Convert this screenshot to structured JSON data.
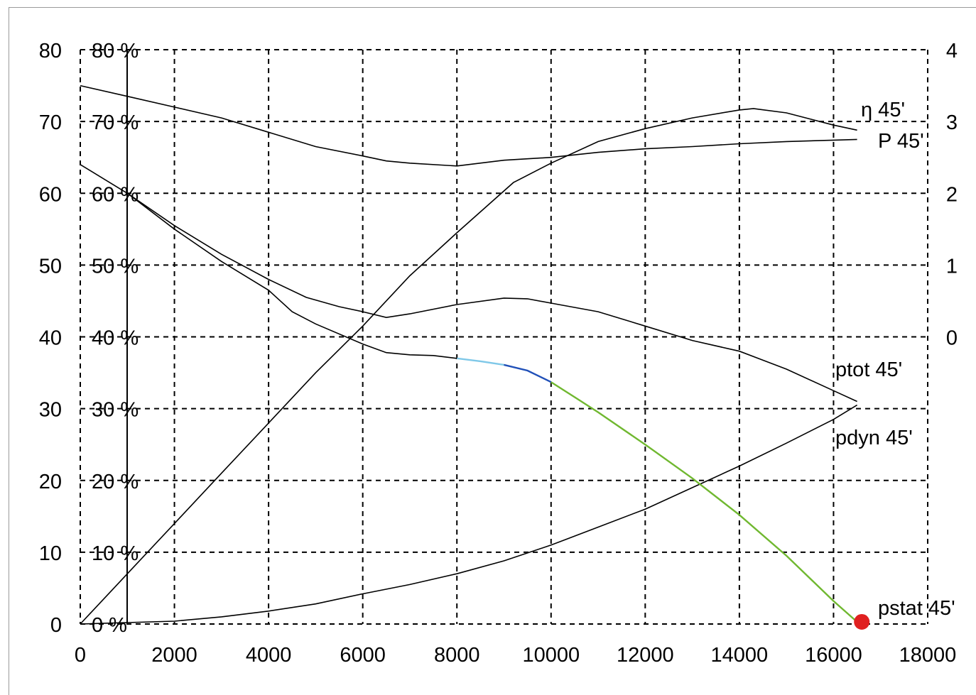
{
  "chart_data": {
    "type": "line",
    "title": "",
    "xlabel": "",
    "ylabel": "",
    "xlim": [
      0,
      18000
    ],
    "ylim": [
      0,
      80
    ],
    "y2lim": [
      -4,
      4
    ],
    "grid": true,
    "x_ticks": [
      "0",
      "2000",
      "4000",
      "6000",
      "8000",
      "10000",
      "12000",
      "14000",
      "16000",
      "18000"
    ],
    "y_ticks": [
      "0",
      "10",
      "20",
      "30",
      "40",
      "50",
      "60",
      "70",
      "80"
    ],
    "y_pct_ticks": [
      "0 %",
      "10 %",
      "20 %",
      "30 %",
      "40 %",
      "50 %",
      "60 %",
      "70 %",
      "80 %"
    ],
    "y2_ticks": [
      "0",
      "1",
      "2",
      "3",
      "4"
    ],
    "series": [
      {
        "name": "η 45'",
        "color": "#000000",
        "points": [
          [
            0,
            0
          ],
          [
            1000,
            7
          ],
          [
            2000,
            14
          ],
          [
            3000,
            21
          ],
          [
            4000,
            28
          ],
          [
            5000,
            35
          ],
          [
            6000,
            41.5
          ],
          [
            7000,
            48.5
          ],
          [
            8000,
            54.5
          ],
          [
            8600,
            58
          ],
          [
            9200,
            61.5
          ],
          [
            10000,
            64.2
          ],
          [
            11000,
            67.2
          ],
          [
            12000,
            69
          ],
          [
            13000,
            70.5
          ],
          [
            14000,
            71.6
          ],
          [
            14300,
            71.8
          ],
          [
            15000,
            71.2
          ],
          [
            16000,
            69.5
          ],
          [
            16500,
            68.8
          ]
        ]
      },
      {
        "name": "P 45'",
        "color": "#000000",
        "points": [
          [
            0,
            75
          ],
          [
            1000,
            73.5
          ],
          [
            2000,
            72
          ],
          [
            3000,
            70.5
          ],
          [
            4000,
            68.5
          ],
          [
            5000,
            66.5
          ],
          [
            6000,
            65.2
          ],
          [
            6500,
            64.5
          ],
          [
            7000,
            64.2
          ],
          [
            8000,
            63.8
          ],
          [
            9000,
            64.6
          ],
          [
            10000,
            65
          ],
          [
            11000,
            65.7
          ],
          [
            12000,
            66.2
          ],
          [
            13000,
            66.5
          ],
          [
            14000,
            66.9
          ],
          [
            15000,
            67.2
          ],
          [
            16000,
            67.4
          ],
          [
            16500,
            67.5
          ]
        ]
      },
      {
        "name": "ptot 45'",
        "color": "#000000",
        "points": [
          [
            0,
            64
          ],
          [
            1000,
            60
          ],
          [
            2000,
            55.5
          ],
          [
            3000,
            51.5
          ],
          [
            4000,
            48
          ],
          [
            4800,
            45.5
          ],
          [
            5500,
            44.2
          ],
          [
            6000,
            43.5
          ],
          [
            6500,
            42.7
          ],
          [
            7000,
            43.2
          ],
          [
            8000,
            44.5
          ],
          [
            9000,
            45.4
          ],
          [
            9500,
            45.3
          ],
          [
            10000,
            44.7
          ],
          [
            11000,
            43.5
          ],
          [
            12000,
            41.5
          ],
          [
            13000,
            39.5
          ],
          [
            14000,
            38
          ],
          [
            15000,
            35.5
          ],
          [
            16000,
            32.5
          ],
          [
            16500,
            31
          ]
        ]
      },
      {
        "name": "pdyn 45'",
        "color": "#000000",
        "points": [
          [
            0,
            0
          ],
          [
            2000,
            0.4
          ],
          [
            3000,
            1
          ],
          [
            4000,
            1.8
          ],
          [
            5000,
            2.8
          ],
          [
            6000,
            4.2
          ],
          [
            7000,
            5.5
          ],
          [
            8000,
            7
          ],
          [
            9000,
            8.8
          ],
          [
            10000,
            11
          ],
          [
            11000,
            13.5
          ],
          [
            12000,
            16
          ],
          [
            13000,
            19
          ],
          [
            14000,
            22
          ],
          [
            15000,
            25.2
          ],
          [
            16000,
            28.5
          ],
          [
            16500,
            30.5
          ]
        ]
      },
      {
        "name": "pstat 45'",
        "color": "#000000",
        "points": [
          [
            1000,
            60
          ],
          [
            2000,
            55
          ],
          [
            3000,
            50.5
          ],
          [
            4000,
            46.5
          ],
          [
            4500,
            43.5
          ],
          [
            5000,
            41.8
          ],
          [
            6000,
            39
          ],
          [
            6500,
            37.8
          ],
          [
            7000,
            37.5
          ],
          [
            7500,
            37.4
          ],
          [
            8000,
            37
          ],
          [
            8500,
            36.6
          ],
          [
            9000,
            36.1
          ],
          [
            9500,
            35.3
          ],
          [
            10000,
            33.7
          ],
          [
            10500,
            31.6
          ],
          [
            11000,
            29.5
          ],
          [
            12000,
            25
          ],
          [
            13000,
            20.3
          ],
          [
            14000,
            15.2
          ],
          [
            15000,
            9.5
          ],
          [
            16000,
            3.2
          ],
          [
            16500,
            0.3
          ]
        ],
        "segments": [
          {
            "from": 7500,
            "to": 7900,
            "color": "#f0a830"
          },
          {
            "from": 7900,
            "to": 9000,
            "color": "#7fc8e8"
          },
          {
            "from": 9000,
            "to": 10000,
            "color": "#2050b8"
          },
          {
            "from": 10000,
            "to": 16500,
            "color": "#70b830"
          }
        ]
      }
    ],
    "marker": {
      "x": 16600,
      "y": 0.3,
      "color": "#e02020"
    }
  }
}
